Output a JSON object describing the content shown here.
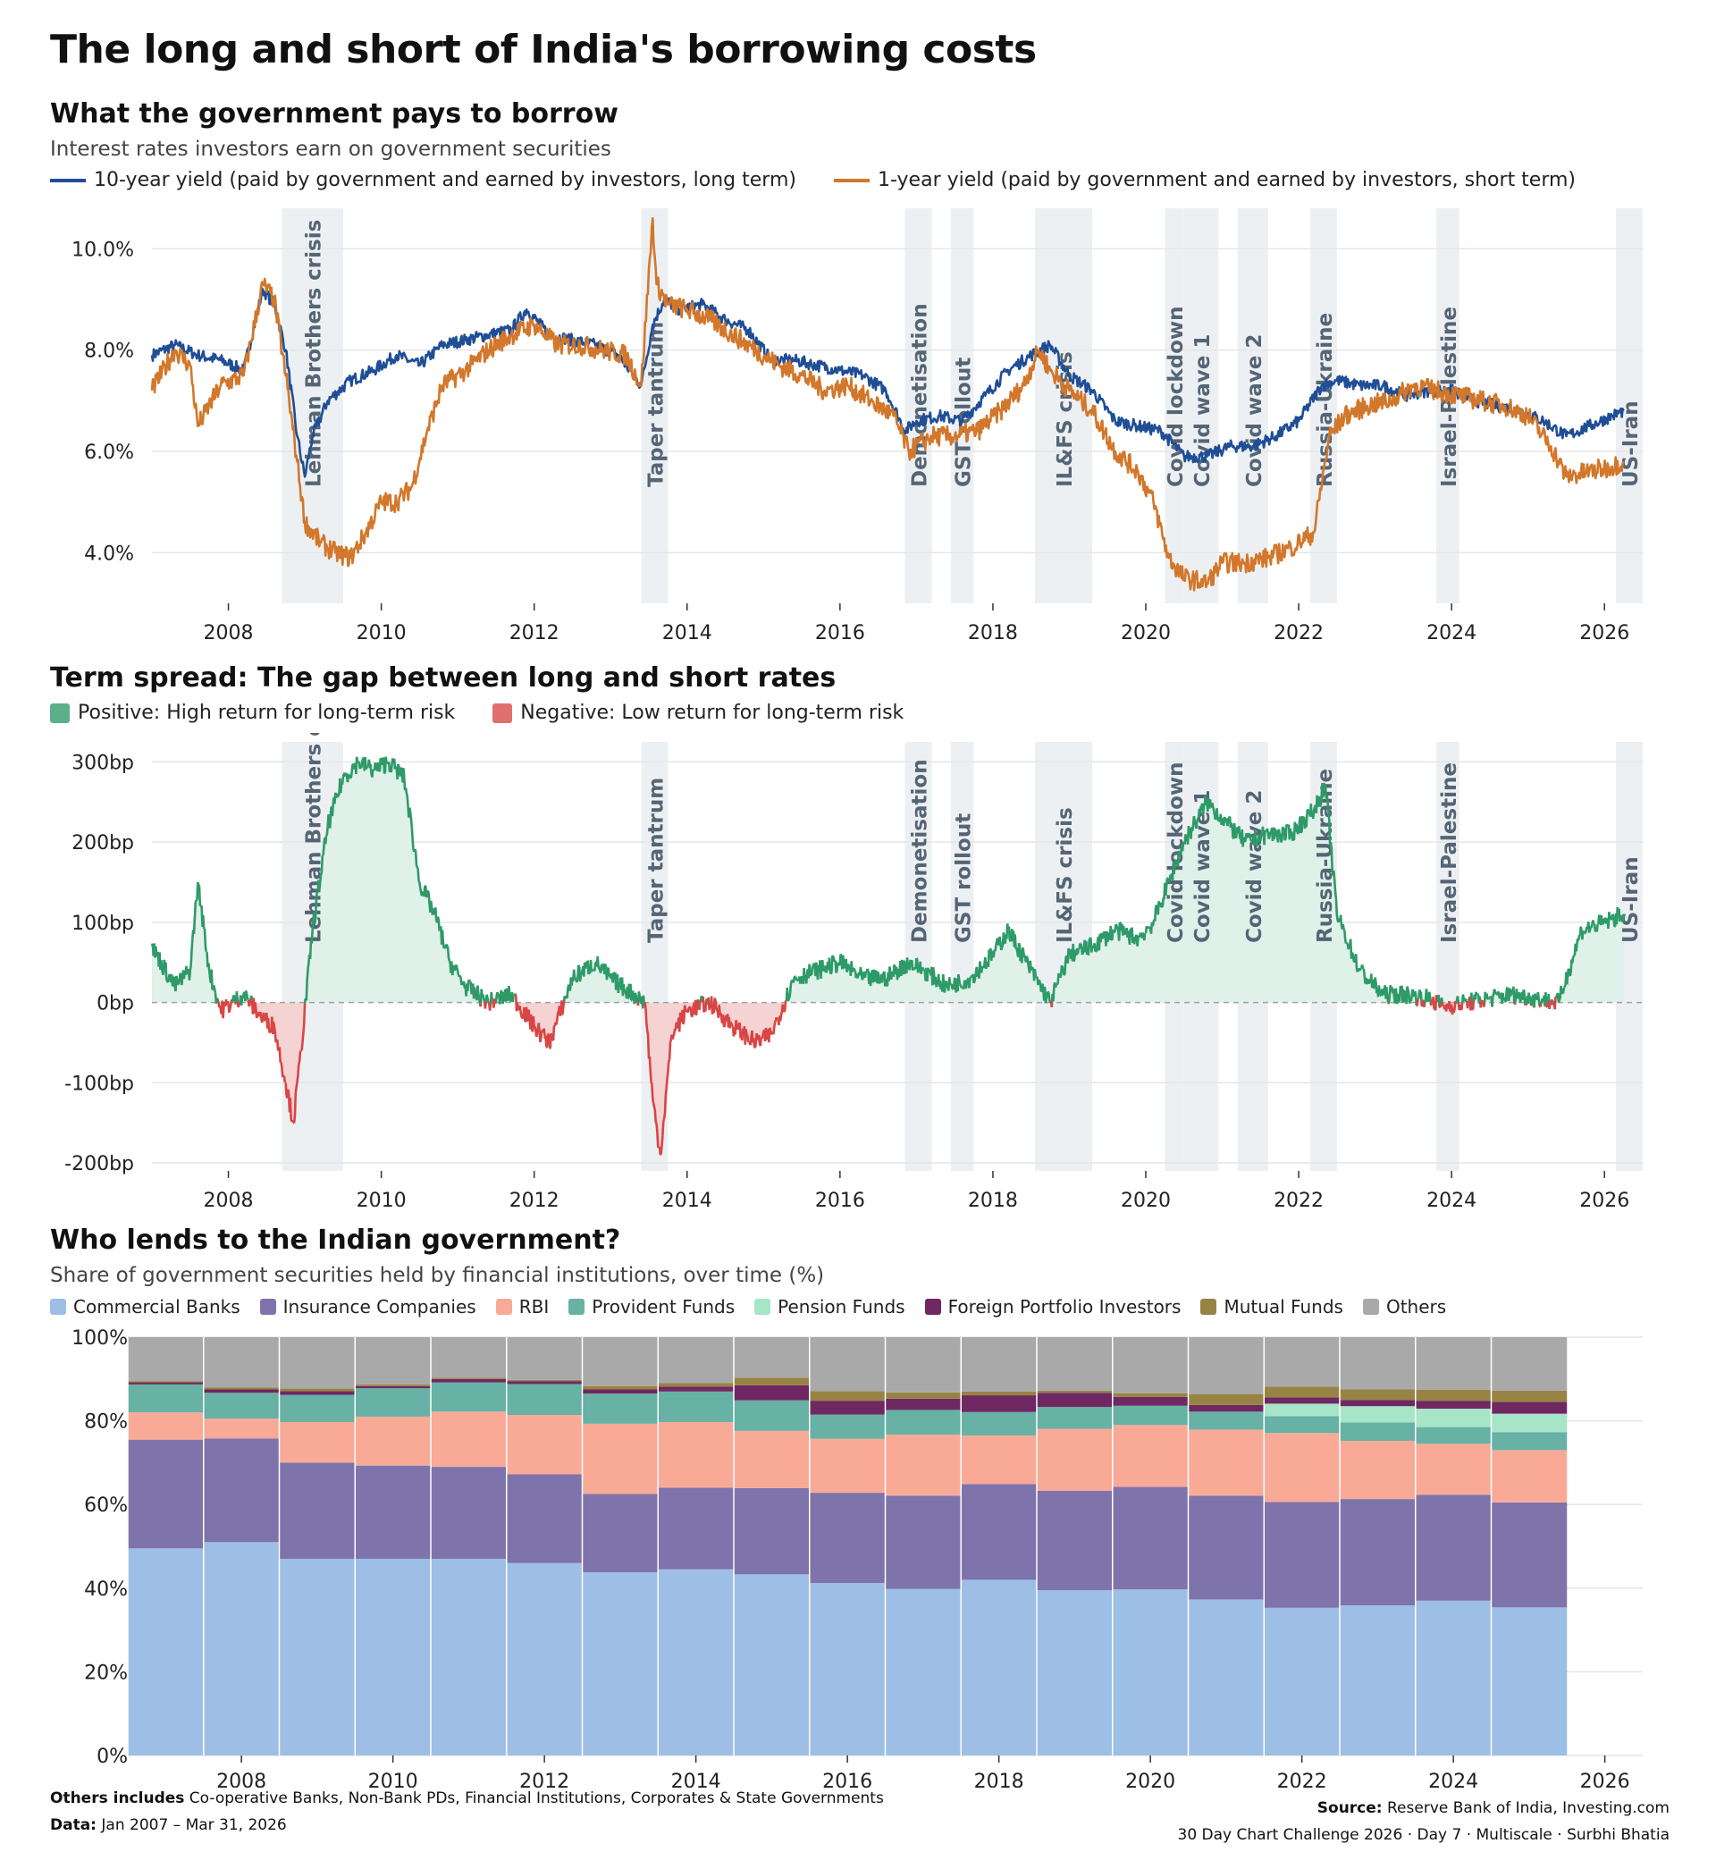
{
  "title": "The long and short of India's borrowing costs",
  "colors": {
    "y10": "#1f4e96",
    "y1": "#d2772b",
    "pos": "#2e9a68",
    "posfill": "#dff1e8",
    "neg": "#d94545",
    "negfill": "#f6d3d3",
    "event": "#edf0f3",
    "event_text": "#556575",
    "grid": "#e6e6e6"
  },
  "events": [
    {
      "label": "Lehman Brothers crisis",
      "start": 2008.7,
      "end": 2009.5
    },
    {
      "label": "Taper tantrum",
      "start": 2013.4,
      "end": 2013.75
    },
    {
      "label": "Demonetisation",
      "start": 2016.85,
      "end": 2017.2
    },
    {
      "label": "GST rollout",
      "start": 2017.45,
      "end": 2017.75
    },
    {
      "label": "IL&FS crisis",
      "start": 2018.55,
      "end": 2019.3
    },
    {
      "label": "Covid lockdown",
      "start": 2020.25,
      "end": 2020.5
    },
    {
      "label": "Covid wave 1",
      "start": 2020.5,
      "end": 2020.95
    },
    {
      "label": "Covid wave 2",
      "start": 2021.2,
      "end": 2021.6
    },
    {
      "label": "Russia-Ukraine",
      "start": 2022.15,
      "end": 2022.5
    },
    {
      "label": "Israel-Palestine",
      "start": 2023.8,
      "end": 2024.1
    },
    {
      "label": "US-Iran",
      "start": 2026.15,
      "end": 2026.5
    }
  ],
  "panel1": {
    "heading": "What the government pays to borrow",
    "subtitle": "Interest rates investors earn on government securities",
    "legend": [
      {
        "label": "10-year yield (paid by government and earned by investors, long term)",
        "color": "#1f4e96"
      },
      {
        "label": "1-year yield (paid by government and earned by investors, short term)",
        "color": "#d2772b"
      }
    ]
  },
  "panel2": {
    "heading": "Term spread: The gap between long and short rates",
    "legend": [
      {
        "label": "Positive: High return for long-term risk",
        "color": "#5bb08a"
      },
      {
        "label": "Negative: Low return for long-term risk",
        "color": "#e07070"
      }
    ]
  },
  "panel3": {
    "heading": "Who lends to the Indian government?",
    "subtitle": "Share of government securities held by financial institutions, over time (%)",
    "others_note_bold": "Others includes",
    "others_note": "Co-operative Banks, Non-Bank PDs, Financial Institutions, Corporates & State Governments",
    "data_bold": "Data:",
    "data_range": "Jan 2007 – Mar 31, 2026"
  },
  "source_bold": "Source:",
  "source": "Reserve Bank of India, Investing.com",
  "credit": "30 Day Chart Challenge 2026  ·  Day 7  ·  Multiscale  ·  Surbhi Bhatia",
  "chart_data": [
    {
      "type": "line",
      "title": "What the government pays to borrow",
      "x_ticks": [
        "2008",
        "2010",
        "2012",
        "2014",
        "2016",
        "2018",
        "2020",
        "2022",
        "2024",
        "2026"
      ],
      "y_ticks": [
        "4.0%",
        "6.0%",
        "8.0%",
        "10.0%"
      ],
      "ylim": [
        3.0,
        10.8
      ],
      "xlim": [
        2007.0,
        2026.5
      ],
      "series": [
        {
          "name": "10-year yield (paid by government and earned by investors, long term)",
          "x": [
            2007.0,
            2007.3,
            2007.6,
            2007.9,
            2008.2,
            2008.45,
            2008.6,
            2008.75,
            2008.9,
            2009.0,
            2009.1,
            2009.3,
            2009.6,
            2009.9,
            2010.2,
            2010.5,
            2010.8,
            2011.1,
            2011.4,
            2011.7,
            2011.9,
            2012.2,
            2012.5,
            2012.8,
            2013.1,
            2013.4,
            2013.55,
            2013.7,
            2013.9,
            2014.2,
            2014.5,
            2014.8,
            2015.1,
            2015.4,
            2015.7,
            2016.0,
            2016.3,
            2016.6,
            2016.85,
            2017.0,
            2017.3,
            2017.6,
            2017.9,
            2018.2,
            2018.5,
            2018.75,
            2019.0,
            2019.3,
            2019.6,
            2019.9,
            2020.2,
            2020.5,
            2020.8,
            2021.1,
            2021.4,
            2021.7,
            2022.0,
            2022.3,
            2022.5,
            2022.8,
            2023.1,
            2023.4,
            2023.7,
            2024.0,
            2024.3,
            2024.6,
            2024.9,
            2025.2,
            2025.5,
            2025.8,
            2026.1,
            2026.25
          ],
          "values": [
            7.9,
            8.1,
            7.9,
            7.8,
            7.6,
            9.2,
            8.9,
            8.0,
            6.3,
            5.5,
            6.3,
            7.0,
            7.4,
            7.6,
            7.9,
            7.7,
            8.1,
            8.2,
            8.3,
            8.4,
            8.8,
            8.3,
            8.2,
            8.1,
            7.9,
            7.3,
            8.5,
            9.0,
            8.8,
            8.9,
            8.6,
            8.4,
            7.8,
            7.8,
            7.7,
            7.6,
            7.5,
            7.2,
            6.4,
            6.6,
            6.7,
            6.6,
            7.1,
            7.6,
            7.9,
            8.1,
            7.5,
            7.2,
            6.6,
            6.5,
            6.4,
            5.9,
            5.9,
            6.1,
            6.1,
            6.3,
            6.6,
            7.3,
            7.4,
            7.3,
            7.3,
            7.1,
            7.2,
            7.2,
            7.0,
            6.9,
            6.8,
            6.6,
            6.3,
            6.5,
            6.7,
            6.8
          ]
        },
        {
          "name": "1-year yield (paid by government and earned by investors, short term)",
          "x": [
            2007.0,
            2007.3,
            2007.5,
            2007.6,
            2007.9,
            2008.2,
            2008.45,
            2008.6,
            2008.75,
            2008.9,
            2009.0,
            2009.2,
            2009.4,
            2009.6,
            2009.8,
            2010.0,
            2010.2,
            2010.4,
            2010.6,
            2010.8,
            2011.1,
            2011.4,
            2011.7,
            2012.0,
            2012.3,
            2012.6,
            2012.9,
            2013.2,
            2013.4,
            2013.55,
            2013.6,
            2013.75,
            2014.0,
            2014.3,
            2014.6,
            2014.9,
            2015.2,
            2015.5,
            2015.8,
            2016.1,
            2016.4,
            2016.7,
            2016.9,
            2017.2,
            2017.5,
            2017.8,
            2018.1,
            2018.4,
            2018.6,
            2018.75,
            2019.0,
            2019.3,
            2019.6,
            2019.9,
            2020.1,
            2020.3,
            2020.5,
            2020.8,
            2021.0,
            2021.3,
            2021.6,
            2021.9,
            2022.2,
            2022.4,
            2022.6,
            2022.9,
            2023.2,
            2023.5,
            2023.8,
            2024.1,
            2024.4,
            2024.7,
            2025.0,
            2025.3,
            2025.5,
            2025.8,
            2026.1,
            2026.25
          ],
          "values": [
            7.2,
            8.0,
            7.7,
            6.5,
            7.3,
            7.5,
            9.3,
            9.0,
            7.5,
            5.8,
            4.6,
            4.2,
            4.0,
            3.9,
            4.4,
            5.0,
            5.0,
            5.3,
            6.4,
            7.3,
            7.6,
            8.0,
            8.3,
            8.5,
            8.1,
            8.1,
            8.0,
            7.9,
            7.3,
            10.6,
            9.3,
            8.9,
            8.8,
            8.6,
            8.3,
            8.0,
            7.7,
            7.5,
            7.2,
            7.3,
            7.0,
            6.7,
            6.0,
            6.3,
            6.3,
            6.4,
            6.8,
            7.3,
            8.0,
            7.6,
            7.2,
            6.8,
            6.0,
            5.6,
            5.0,
            3.9,
            3.5,
            3.4,
            3.8,
            3.8,
            3.9,
            4.1,
            4.4,
            6.3,
            6.7,
            6.9,
            7.0,
            7.3,
            7.2,
            7.1,
            7.0,
            6.9,
            6.7,
            6.1,
            5.5,
            5.6,
            5.7,
            5.8
          ]
        }
      ]
    },
    {
      "type": "area",
      "title": "Term spread: The gap between long and short rates",
      "x_ticks": [
        "2008",
        "2010",
        "2012",
        "2014",
        "2016",
        "2018",
        "2020",
        "2022",
        "2024",
        "2026"
      ],
      "y_ticks": [
        "-200bp",
        "-100bp",
        "0bp",
        "100bp",
        "200bp",
        "300bp"
      ],
      "ylim": [
        -210,
        325
      ],
      "xlim": [
        2007.0,
        2026.5
      ],
      "series": [
        {
          "name": "Term spread",
          "x": [
            2007.0,
            2007.3,
            2007.5,
            2007.6,
            2007.75,
            2007.9,
            2008.2,
            2008.45,
            2008.6,
            2008.75,
            2008.85,
            2008.95,
            2009.1,
            2009.3,
            2009.5,
            2009.7,
            2009.9,
            2010.1,
            2010.3,
            2010.5,
            2010.7,
            2010.9,
            2011.1,
            2011.4,
            2011.7,
            2012.0,
            2012.2,
            2012.5,
            2012.8,
            2013.0,
            2013.3,
            2013.45,
            2013.55,
            2013.65,
            2013.8,
            2014.0,
            2014.3,
            2014.6,
            2014.9,
            2015.1,
            2015.4,
            2015.7,
            2016.0,
            2016.3,
            2016.6,
            2016.9,
            2017.1,
            2017.4,
            2017.7,
            2018.0,
            2018.2,
            2018.5,
            2018.75,
            2019.0,
            2019.3,
            2019.6,
            2019.9,
            2020.1,
            2020.3,
            2020.5,
            2020.8,
            2021.0,
            2021.3,
            2021.6,
            2021.9,
            2022.2,
            2022.35,
            2022.5,
            2022.8,
            2023.1,
            2023.4,
            2023.7,
            2023.9,
            2024.2,
            2024.5,
            2024.8,
            2025.1,
            2025.4,
            2025.7,
            2026.0,
            2026.25
          ],
          "values": [
            70,
            20,
            40,
            150,
            40,
            -10,
            10,
            -20,
            -30,
            -100,
            -150,
            -60,
            90,
            220,
            280,
            300,
            290,
            300,
            280,
            150,
            110,
            50,
            20,
            0,
            10,
            -30,
            -50,
            30,
            50,
            30,
            10,
            0,
            -120,
            -190,
            -40,
            -10,
            0,
            -30,
            -50,
            -40,
            30,
            40,
            50,
            30,
            30,
            50,
            40,
            20,
            30,
            60,
            90,
            40,
            0,
            60,
            70,
            90,
            80,
            100,
            150,
            200,
            250,
            230,
            200,
            210,
            210,
            240,
            270,
            110,
            40,
            10,
            10,
            5,
            -5,
            0,
            5,
            10,
            5,
            0,
            90,
            100,
            110
          ]
        }
      ]
    },
    {
      "type": "bar",
      "stacked": true,
      "title": "Who lends to the Indian government?",
      "x_ticks": [
        "2008",
        "2010",
        "2012",
        "2014",
        "2016",
        "2018",
        "2020",
        "2022",
        "2024",
        "2026"
      ],
      "y_ticks": [
        "0%",
        "20%",
        "40%",
        "60%",
        "80%",
        "100%"
      ],
      "ylim": [
        0,
        100
      ],
      "categories": [
        2007,
        2008,
        2009,
        2010,
        2011,
        2012,
        2013,
        2014,
        2015,
        2016,
        2017,
        2018,
        2019,
        2020,
        2021,
        2022,
        2023,
        2024,
        2025
      ],
      "series": [
        {
          "name": "Commercial Banks",
          "color": "#9ebfe5",
          "values": [
            49.5,
            51,
            47,
            47,
            47,
            46,
            43.8,
            44.5,
            43.3,
            41.2,
            39.8,
            42,
            39.5,
            39.7,
            37.3,
            35.3,
            35.9,
            37,
            35.4
          ]
        },
        {
          "name": "Insurance Companies",
          "color": "#7f73ab",
          "values": [
            26,
            24.8,
            23,
            22.3,
            22,
            21.2,
            18.7,
            19.5,
            20.6,
            21.6,
            22.3,
            22.9,
            23.8,
            24.5,
            24.8,
            25.3,
            25.4,
            25.3,
            25.1
          ]
        },
        {
          "name": "RBI",
          "color": "#f9aa97",
          "values": [
            6.5,
            4.7,
            9.7,
            11.7,
            13.2,
            14.2,
            16.8,
            15.7,
            13.7,
            12.9,
            14.6,
            11.6,
            14.8,
            14.8,
            15.8,
            16.5,
            13.9,
            12.2,
            12.5
          ]
        },
        {
          "name": "Provident Funds",
          "color": "#67b1a5",
          "values": [
            6.7,
            6.2,
            6.5,
            6.8,
            7.0,
            7.4,
            7.2,
            7.3,
            7.3,
            5.8,
            5.9,
            5.6,
            5.2,
            4.6,
            4.3,
            4.0,
            4.4,
            4.0,
            4.3
          ]
        },
        {
          "name": "Pension Funds",
          "color": "#a6e5c7",
          "values": [
            0,
            0,
            0,
            0,
            0,
            0,
            0,
            0,
            0,
            0,
            0,
            0,
            0,
            0,
            0,
            3.0,
            3.9,
            4.4,
            4.4
          ]
        },
        {
          "name": "Foreign Portfolio Investors",
          "color": "#6f2862",
          "values": [
            0.5,
            0.8,
            0.9,
            0.5,
            0.8,
            0.7,
            1.0,
            1.2,
            3.6,
            3.3,
            2.7,
            4.0,
            3.4,
            2.1,
            1.6,
            1.5,
            1.5,
            1.9,
            2.8
          ]
        },
        {
          "name": "Mutual Funds",
          "color": "#978343",
          "values": [
            0.3,
            0.5,
            0.6,
            0.4,
            0.3,
            0.3,
            0.8,
            0.8,
            1.8,
            2.3,
            1.5,
            0.9,
            0.5,
            0.9,
            2.6,
            2.6,
            2.5,
            2.6,
            2.7
          ]
        },
        {
          "name": "Others",
          "color": "#a9a9a9",
          "values": [
            10.5,
            12,
            12.3,
            11.3,
            9.7,
            10.2,
            11.7,
            11,
            9.7,
            12.9,
            13.2,
            13,
            12.8,
            13.4,
            13.6,
            11.8,
            12.5,
            12.6,
            12.8
          ]
        }
      ]
    }
  ]
}
